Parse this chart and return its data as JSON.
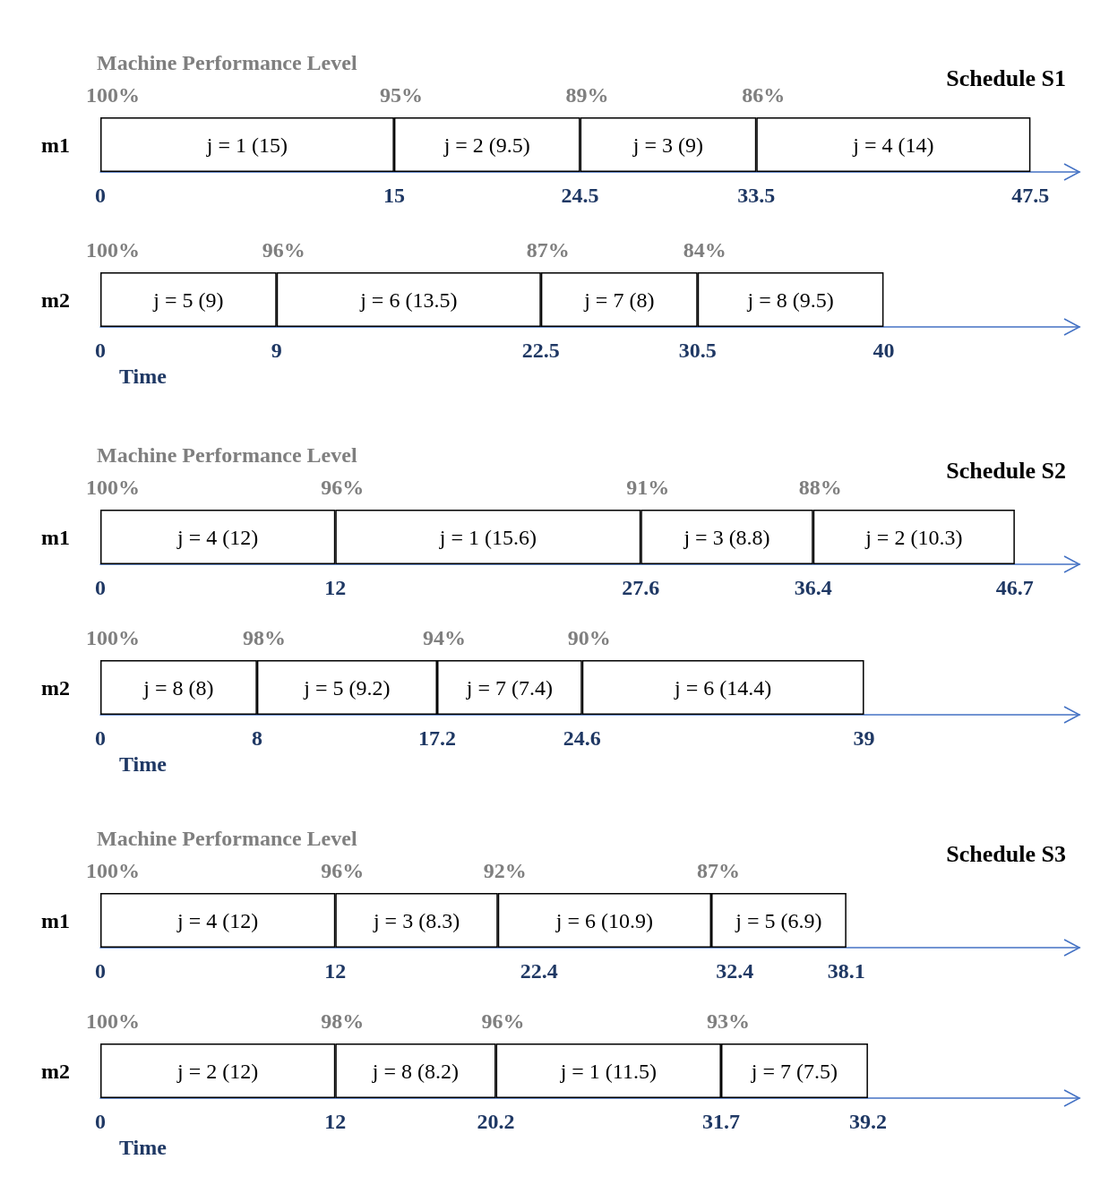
{
  "chart_data": [
    {
      "type": "bar",
      "orientation": "horizontal",
      "stacked": true,
      "title": "Machine Performance Level",
      "subtitle": "Schedule S1",
      "categories": [
        "m1"
      ],
      "xlim": [
        0,
        50
      ],
      "xticks": [
        0,
        15,
        24.5,
        33.5,
        47.5
      ],
      "series": [
        {
          "color": "#ffffff",
          "values": [
            15
          ],
          "value_labels": [
            "j = 1 (15)"
          ]
        },
        {
          "color": "#ffffff",
          "values": [
            9.5
          ],
          "value_labels": [
            "j = 2 (9.5)"
          ]
        },
        {
          "color": "#ffffff",
          "values": [
            9
          ],
          "value_labels": [
            "j = 3 (9)"
          ]
        },
        {
          "color": "#ffffff",
          "values": [
            14
          ],
          "value_labels": [
            "j = 4 (14)"
          ]
        }
      ],
      "annotations": [
        {
          "text": "100%",
          "x": 0,
          "y": "m1"
        },
        {
          "text": "95%",
          "x": 15,
          "y": "m1"
        },
        {
          "text": "89%",
          "x": 24.5,
          "y": "m1"
        },
        {
          "text": "86%",
          "x": 33.5,
          "y": "m1"
        }
      ]
    },
    {
      "type": "bar",
      "orientation": "horizontal",
      "stacked": true,
      "xlabel": "Time",
      "categories": [
        "m2"
      ],
      "xlim": [
        0,
        50
      ],
      "xticks": [
        0,
        9,
        22.5,
        30.5,
        40
      ],
      "series": [
        {
          "color": "#ffffff",
          "values": [
            9
          ],
          "value_labels": [
            "j = 5 (9)"
          ]
        },
        {
          "color": "#ffffff",
          "values": [
            13.5
          ],
          "value_labels": [
            "j = 6 (13.5)"
          ]
        },
        {
          "color": "#ffffff",
          "values": [
            8
          ],
          "value_labels": [
            "j = 7 (8)"
          ]
        },
        {
          "color": "#ffffff",
          "values": [
            9.5
          ],
          "value_labels": [
            "j = 8 (9.5)"
          ]
        }
      ],
      "annotations": [
        {
          "text": "100%",
          "x": 0,
          "y": "m2"
        },
        {
          "text": "96%",
          "x": 9,
          "y": "m2"
        },
        {
          "text": "87%",
          "x": 22.5,
          "y": "m2"
        },
        {
          "text": "84%",
          "x": 30.5,
          "y": "m2"
        }
      ]
    },
    {
      "type": "bar",
      "orientation": "horizontal",
      "stacked": true,
      "title": "Machine Performance Level",
      "subtitle": "Schedule S2",
      "categories": [
        "m1"
      ],
      "xlim": [
        0,
        50
      ],
      "xticks": [
        0,
        12,
        27.6,
        36.4,
        46.7
      ],
      "series": [
        {
          "color": "#ffffff",
          "values": [
            12
          ],
          "value_labels": [
            "j = 4 (12)"
          ]
        },
        {
          "color": "#ffffff",
          "values": [
            15.6
          ],
          "value_labels": [
            "j = 1 (15.6)"
          ]
        },
        {
          "color": "#ffffff",
          "values": [
            8.8
          ],
          "value_labels": [
            "j = 3 (8.8)"
          ]
        },
        {
          "color": "#ffffff",
          "values": [
            10.3
          ],
          "value_labels": [
            "j = 2 (10.3)"
          ]
        }
      ],
      "annotations": [
        {
          "text": "100%",
          "x": 0,
          "y": "m1"
        },
        {
          "text": "96%",
          "x": 12,
          "y": "m1"
        },
        {
          "text": "91%",
          "x": 27.6,
          "y": "m1"
        },
        {
          "text": "88%",
          "x": 36.4,
          "y": "m1"
        }
      ]
    },
    {
      "type": "bar",
      "orientation": "horizontal",
      "stacked": true,
      "xlabel": "Time",
      "categories": [
        "m2"
      ],
      "xlim": [
        0,
        50
      ],
      "xticks": [
        0,
        8,
        17.2,
        24.6,
        39
      ],
      "series": [
        {
          "color": "#ffffff",
          "values": [
            8
          ],
          "value_labels": [
            "j = 8 (8)"
          ]
        },
        {
          "color": "#ffffff",
          "values": [
            9.2
          ],
          "value_labels": [
            "j = 5 (9.2)"
          ]
        },
        {
          "color": "#ffffff",
          "values": [
            7.4
          ],
          "value_labels": [
            "j = 7 (7.4)"
          ]
        },
        {
          "color": "#ffffff",
          "values": [
            14.4
          ],
          "value_labels": [
            "j = 6 (14.4)"
          ]
        }
      ],
      "annotations": [
        {
          "text": "100%",
          "x": 0,
          "y": "m2"
        },
        {
          "text": "98%",
          "x": 8,
          "y": "m2"
        },
        {
          "text": "94%",
          "x": 17.2,
          "y": "m2"
        },
        {
          "text": "90%",
          "x": 24.6,
          "y": "m2"
        }
      ]
    },
    {
      "type": "bar",
      "orientation": "horizontal",
      "stacked": true,
      "title": "Machine Performance Level",
      "subtitle": "Schedule S3",
      "categories": [
        "m1"
      ],
      "xlim": [
        0,
        50
      ],
      "xticks": [
        0,
        12,
        22.4,
        32.4,
        38.1
      ],
      "series": [
        {
          "color": "#ffffff",
          "values": [
            12
          ],
          "value_labels": [
            "j = 4 (12)"
          ]
        },
        {
          "color": "#ffffff",
          "values": [
            8.3
          ],
          "value_labels": [
            "j = 3 (8.3)"
          ]
        },
        {
          "color": "#ffffff",
          "values": [
            10.9
          ],
          "value_labels": [
            "j = 6 (10.9)"
          ]
        },
        {
          "color": "#ffffff",
          "values": [
            6.9
          ],
          "value_labels": [
            "j = 5 (6.9)"
          ]
        }
      ],
      "annotations": [
        {
          "text": "100%",
          "x": 0,
          "y": "m1"
        },
        {
          "text": "96%",
          "x": 12,
          "y": "m1"
        },
        {
          "text": "92%",
          "x": 20.3,
          "y": "m1"
        },
        {
          "text": "87%",
          "x": 31.2,
          "y": "m1"
        }
      ]
    },
    {
      "type": "bar",
      "orientation": "horizontal",
      "stacked": true,
      "xlabel": "Time",
      "categories": [
        "m2"
      ],
      "xlim": [
        0,
        50
      ],
      "xticks": [
        0,
        12,
        20.2,
        31.7,
        39.2
      ],
      "series": [
        {
          "color": "#ffffff",
          "values": [
            12
          ],
          "value_labels": [
            "j = 2 (12)"
          ]
        },
        {
          "color": "#ffffff",
          "values": [
            8.2
          ],
          "value_labels": [
            "j = 8 (8.2)"
          ]
        },
        {
          "color": "#ffffff",
          "values": [
            11.5
          ],
          "value_labels": [
            "j = 1 (11.5)"
          ]
        },
        {
          "color": "#ffffff",
          "values": [
            7.5
          ],
          "value_labels": [
            "j = 7 (7.5)"
          ]
        }
      ],
      "annotations": [
        {
          "text": "100%",
          "x": 0,
          "y": "m2"
        },
        {
          "text": "98%",
          "x": 12,
          "y": "m2"
        },
        {
          "text": "96%",
          "x": 20.2,
          "y": "m2"
        },
        {
          "text": "93%",
          "x": 31.7,
          "y": "m2"
        }
      ]
    }
  ]
}
